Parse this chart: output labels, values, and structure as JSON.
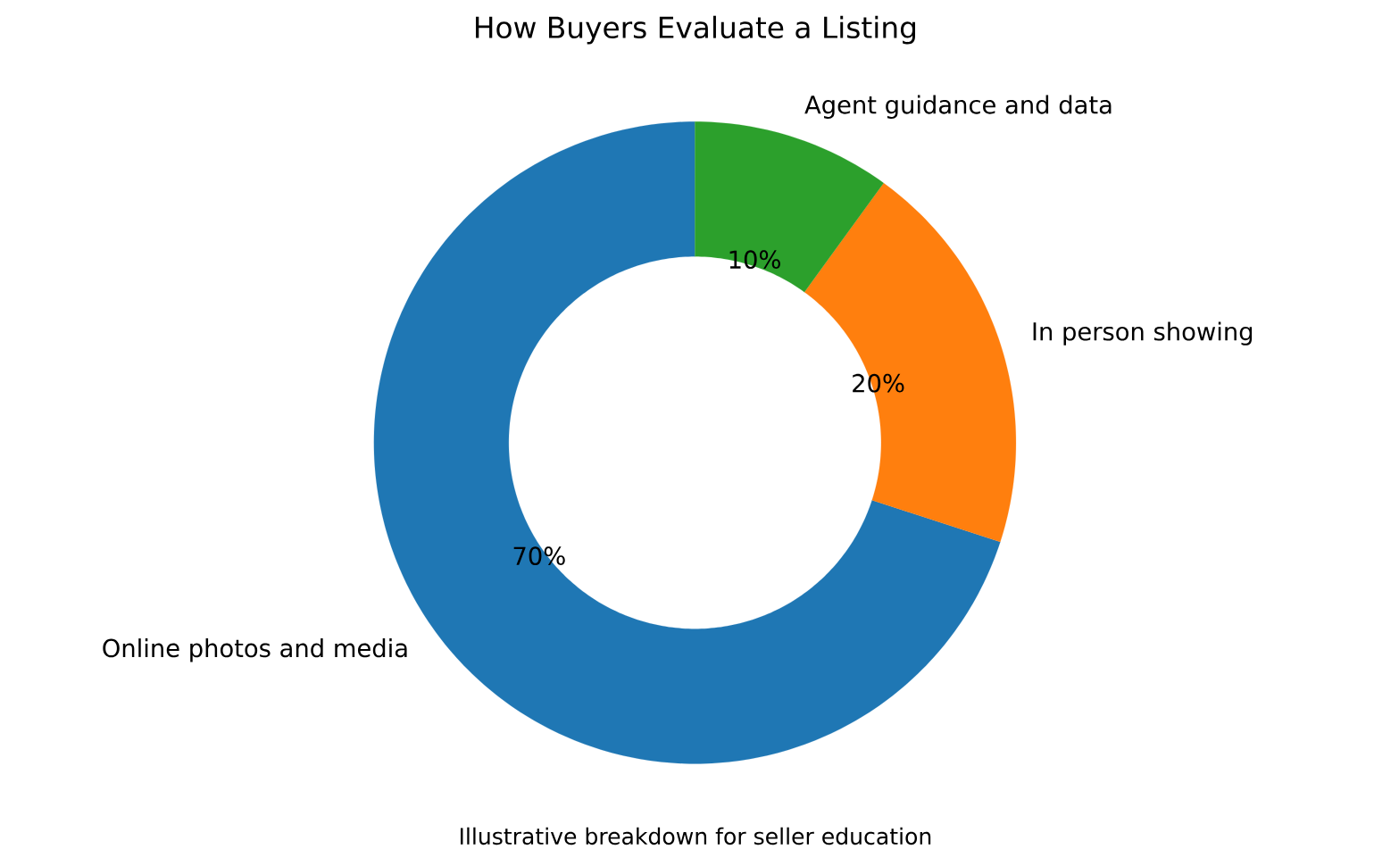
{
  "chart_data": {
    "type": "donut",
    "title": "How Buyers Evaluate a Listing",
    "categories": [
      "Online photos and media",
      "In person showing",
      "Agent guidance and data"
    ],
    "values": [
      70,
      20,
      10
    ],
    "colors": [
      "#1f77b4",
      "#ff7f0e",
      "#2ca02c"
    ],
    "value_labels": [
      "70%",
      "20%",
      "10%"
    ],
    "annotations": [
      "Illustrative breakdown for seller education"
    ]
  }
}
